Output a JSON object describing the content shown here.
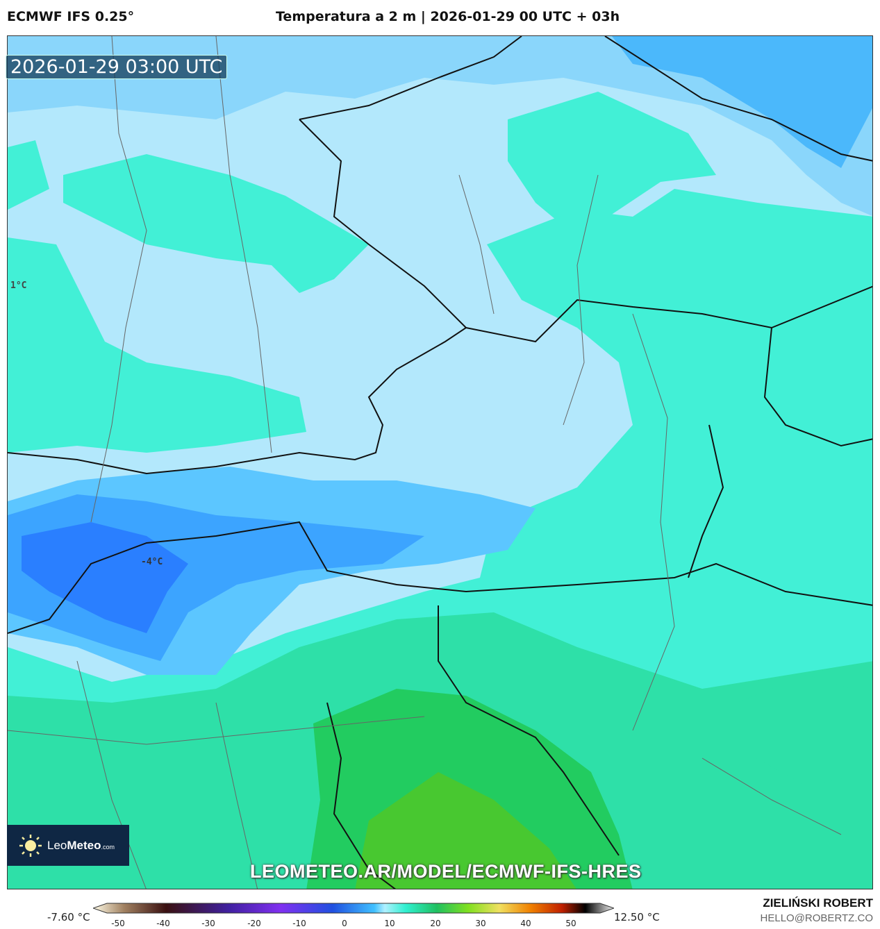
{
  "header": {
    "model": "ECMWF IFS 0.25°",
    "title": "Temperatura a 2 m | 2026-01-29 00 UTC + 03h"
  },
  "map": {
    "valid_time": "2026-01-29 03:00 UTC",
    "labels": [
      "1°C",
      "-4°C"
    ],
    "colors": {
      "cold_deep": "#2a7fff",
      "cold": "#5cc6ff",
      "cool": "#b3e8fc",
      "zero": "#42f0d6",
      "mild": "#2ee0a8",
      "warm": "#22cc60",
      "warmer": "#48c830"
    },
    "watermark_url": "LEOMETEO.AR/MODEL/ECMWF-IFS-HRES"
  },
  "logo": {
    "text_light": "Leo",
    "text_bold": "Meteo",
    "suffix": ".com"
  },
  "colorbar": {
    "min_value": "-7.60 °C",
    "max_value": "12.50 °C",
    "ticks": [
      "-50",
      "-40",
      "-30",
      "-20",
      "-10",
      "0",
      "10",
      "20",
      "30",
      "40",
      "50"
    ]
  },
  "credits": {
    "author": "ZIELIŃSKI ROBERT",
    "email": "HELLO@ROBERTZ.CO"
  }
}
